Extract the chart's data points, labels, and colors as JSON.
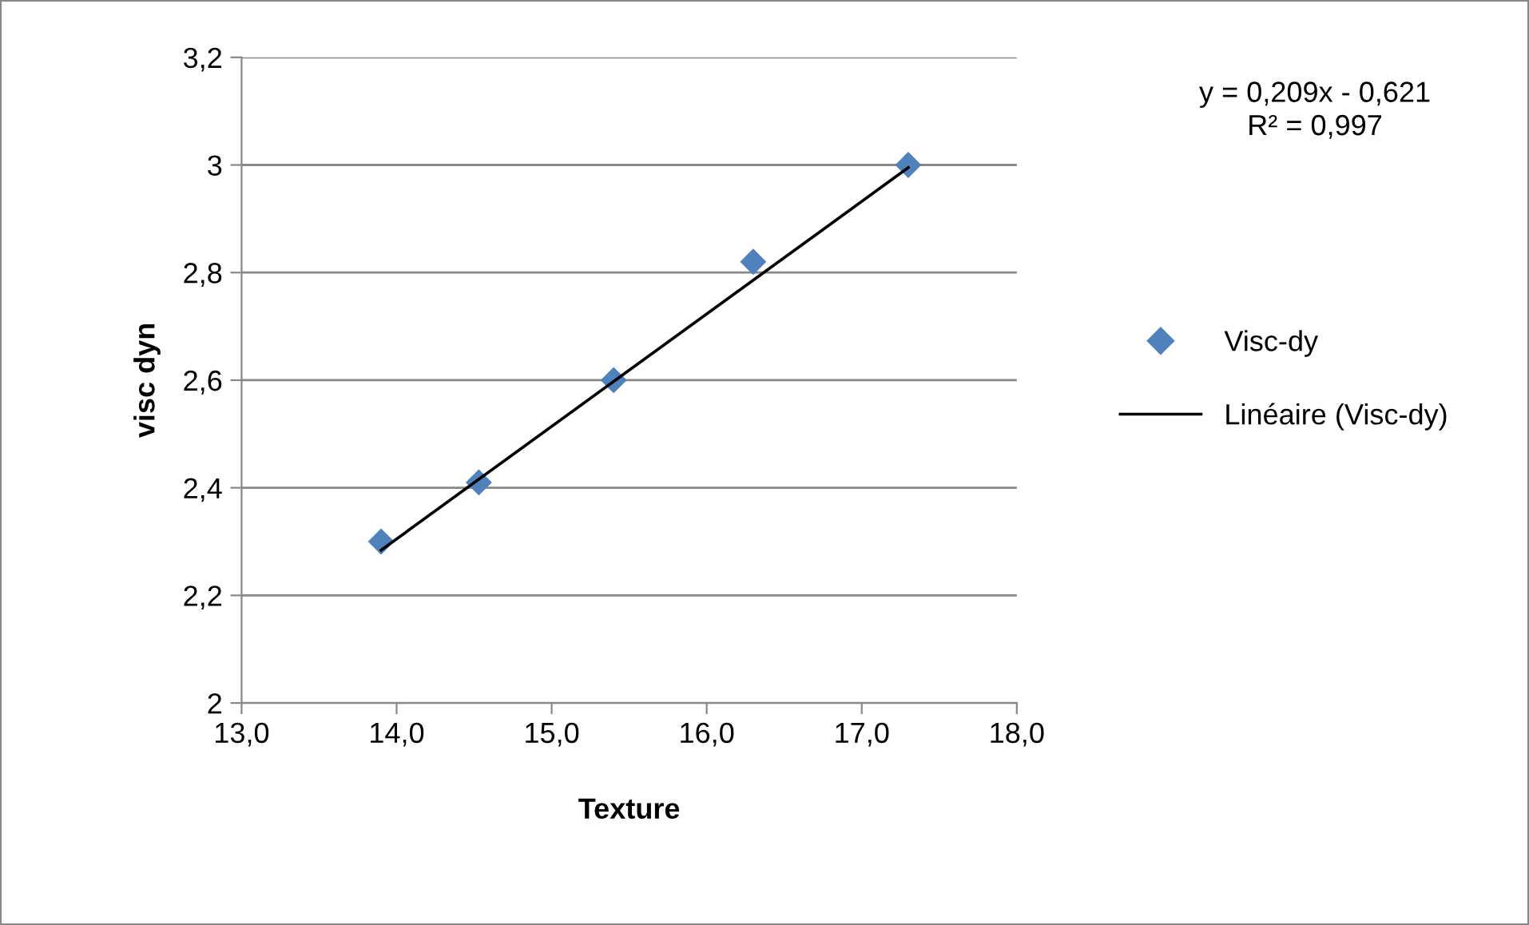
{
  "chart_data": {
    "type": "scatter",
    "xlabel": "Texture",
    "ylabel": "visc dyn",
    "series": [
      {
        "name": "Visc-dy",
        "color": "#4f81bd",
        "marker": "diamond",
        "x": [
          13.9,
          14.53,
          15.4,
          16.3,
          17.3
        ],
        "values": [
          2.3,
          2.41,
          2.6,
          2.82,
          3.0
        ]
      },
      {
        "name": "Linéaire (Visc-dy)",
        "type": "line",
        "color": "#000000",
        "line_style": "solid",
        "x": [
          13.9,
          17.3
        ],
        "values": [
          2.284,
          2.995
        ]
      }
    ],
    "xlim": [
      13.0,
      18.0
    ],
    "xticks": [
      {
        "value": 13,
        "label": "13,0"
      },
      {
        "value": 14,
        "label": "14,0"
      },
      {
        "value": 15,
        "label": "15,0"
      },
      {
        "value": 16,
        "label": "16,0"
      },
      {
        "value": 17,
        "label": "17,0"
      },
      {
        "value": 18,
        "label": "18,0"
      }
    ],
    "ylim": [
      2,
      3.2
    ],
    "yticks": [
      2,
      {
        "value": 2.2,
        "label": "2,2"
      },
      {
        "value": 2.4,
        "label": "2,4"
      },
      {
        "value": 2.6,
        "label": "2,6"
      },
      {
        "value": 2.8,
        "label": "2,8"
      },
      3,
      {
        "value": 3.2,
        "label": "3,2"
      }
    ],
    "grid": "y",
    "legend": "right",
    "annotations": [
      "y = 0,209x - 0,621\nR² = 0,997"
    ]
  }
}
